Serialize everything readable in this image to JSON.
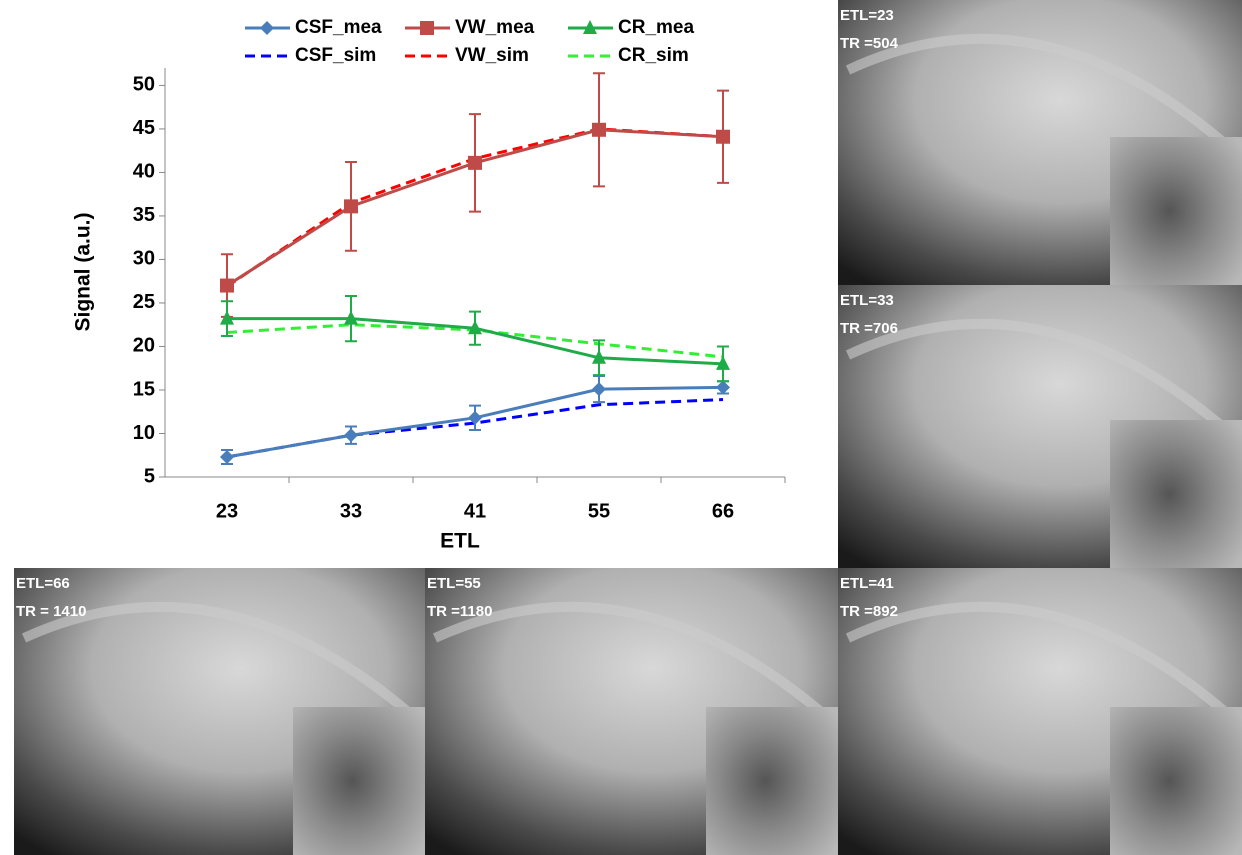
{
  "chart_data": {
    "type": "line",
    "xlabel": "ETL",
    "ylabel": "Signal (a.u.)",
    "categories": [
      "23",
      "33",
      "41",
      "55",
      "66"
    ],
    "ylim": [
      5,
      52
    ],
    "yticks": [
      5,
      10,
      15,
      20,
      25,
      30,
      35,
      40,
      45,
      50
    ],
    "series": [
      {
        "name": "CSF_mea",
        "color": "#4a7ebb",
        "marker": "diamond",
        "dash": false,
        "values": [
          7.3,
          9.8,
          11.8,
          15.1,
          15.3
        ],
        "errors": [
          0.8,
          1.0,
          1.4,
          1.5,
          0.7
        ]
      },
      {
        "name": "VW_mea",
        "color": "#be4b48",
        "marker": "square",
        "dash": false,
        "values": [
          27.0,
          36.1,
          41.1,
          44.9,
          44.1
        ],
        "errors": [
          3.6,
          5.1,
          5.6,
          6.5,
          5.3
        ]
      },
      {
        "name": "CR_mea",
        "color": "#1fab48",
        "marker": "triangle",
        "dash": false,
        "values": [
          23.2,
          23.2,
          22.1,
          18.7,
          18.0
        ],
        "errors": [
          2.0,
          2.6,
          1.9,
          2.0,
          2.0
        ]
      },
      {
        "name": "CSF_sim",
        "color": "#0000ff",
        "dash": true,
        "values": [
          7.3,
          9.8,
          11.2,
          13.3,
          13.9
        ]
      },
      {
        "name": "VW_sim",
        "color": "#ff0000",
        "dash": true,
        "values": [
          26.9,
          36.5,
          41.6,
          45.0,
          44.1
        ]
      },
      {
        "name": "CR_sim",
        "color": "#33ee33",
        "dash": true,
        "values": [
          21.6,
          22.5,
          21.9,
          20.3,
          18.8
        ]
      }
    ]
  },
  "panels": [
    {
      "etl": "ETL=23",
      "tr": "TR =504"
    },
    {
      "etl": "ETL=33",
      "tr": "TR =706"
    },
    {
      "etl": "ETL=66",
      "tr": "TR = 1410"
    },
    {
      "etl": "ETL=55",
      "tr": "TR =1180"
    },
    {
      "etl": "ETL=41",
      "tr": "TR =892"
    }
  ]
}
